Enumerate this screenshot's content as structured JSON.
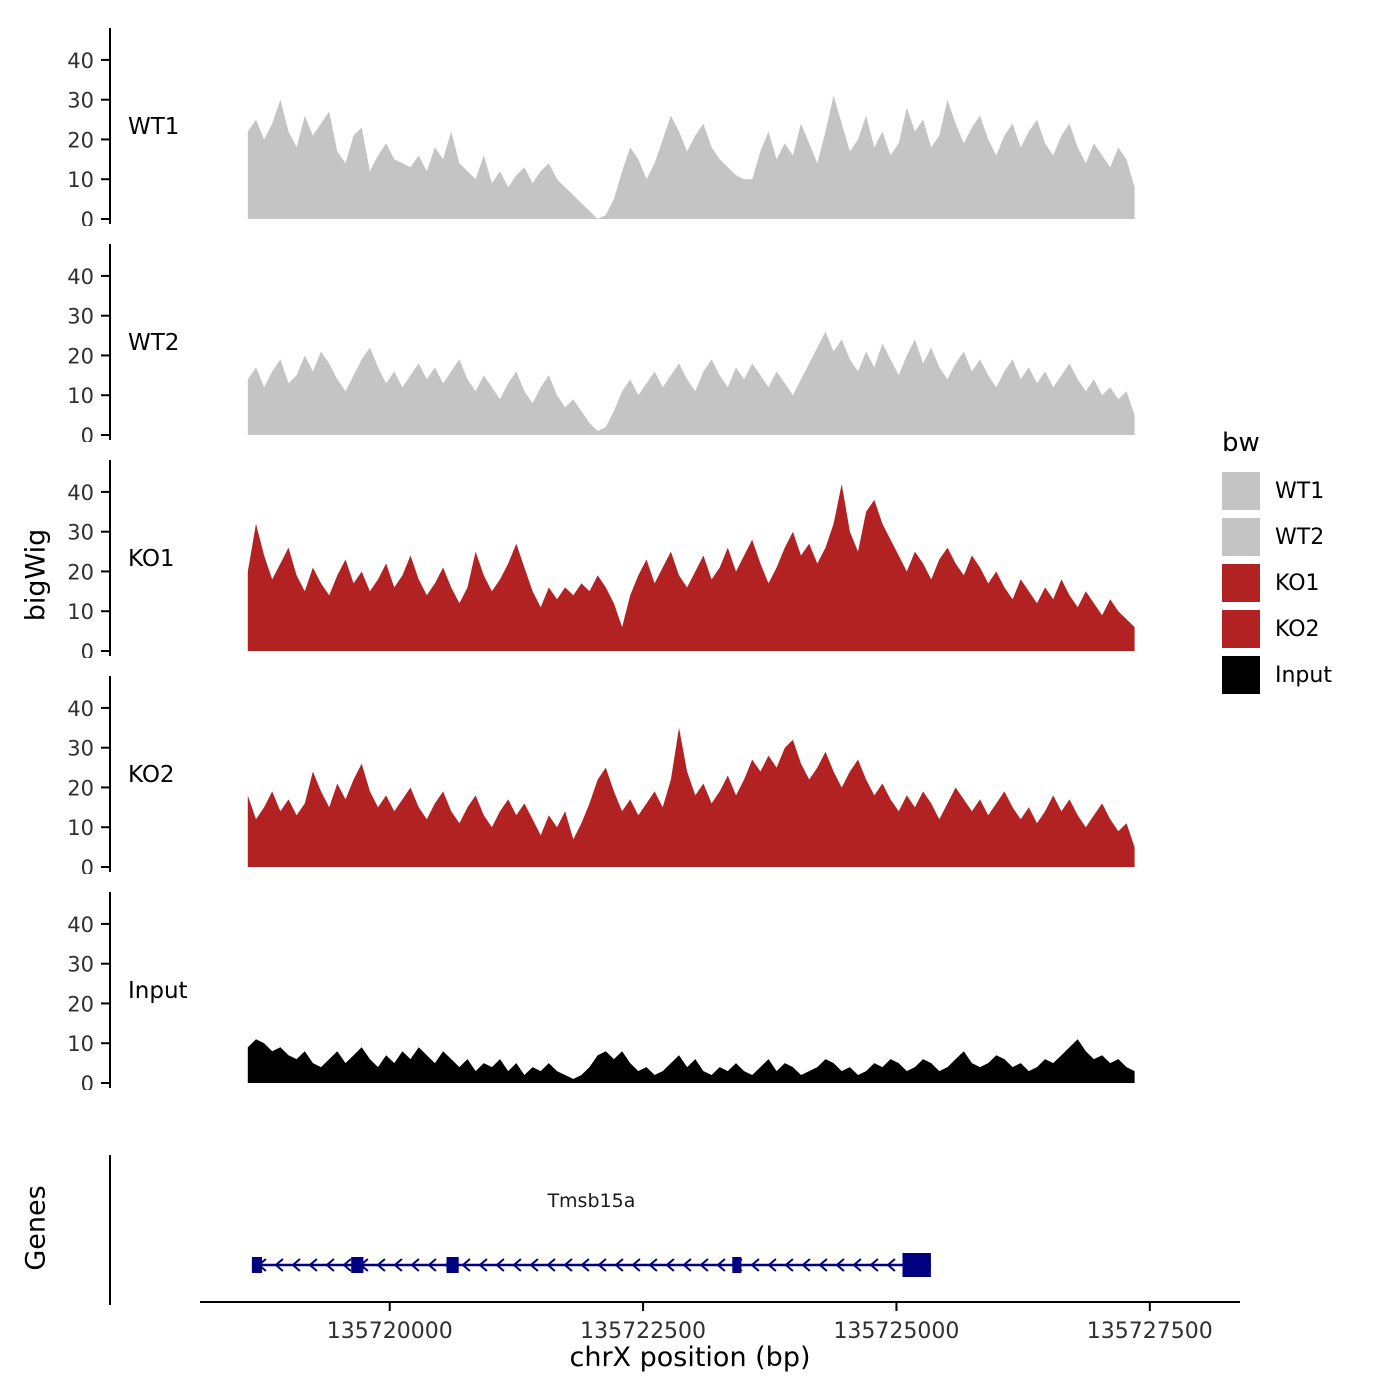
{
  "figure": {
    "y_axis_label": "bigWig",
    "genes_axis_label": "Genes",
    "x_axis_label": "chrX position (bp)",
    "x_domain": [
      135717240,
      135728390
    ],
    "x_ticks": [
      135720000,
      135722500,
      135725000,
      135727500
    ],
    "y_ticks": [
      0,
      10,
      20,
      30,
      40
    ],
    "y_max": 44,
    "background": "#ffffff"
  },
  "legend": {
    "title": "bw",
    "entries": [
      {
        "label": "WT1",
        "color": "#c4c4c4"
      },
      {
        "label": "WT2",
        "color": "#c4c4c4"
      },
      {
        "label": "KO1",
        "color": "#b22222"
      },
      {
        "label": "KO2",
        "color": "#b22222"
      },
      {
        "label": "Input",
        "color": "#000000"
      }
    ]
  },
  "chart_data": {
    "type": "area",
    "title": "",
    "xlabel": "chrX position (bp)",
    "ylabel": "bigWig",
    "x_start": 135718600,
    "x_end": 135727350,
    "ylim": [
      0,
      44
    ],
    "y_ticks": [
      0,
      10,
      20,
      30,
      40
    ],
    "series": [
      {
        "name": "WT1",
        "color": "#c4c4c4",
        "values": [
          22,
          25,
          20,
          24,
          30,
          22,
          18,
          26,
          21,
          24,
          27,
          17,
          14,
          21,
          23,
          12,
          16,
          19,
          15,
          14,
          13,
          16,
          12,
          18,
          15,
          22,
          14,
          12,
          10,
          16,
          9,
          12,
          8,
          11,
          13,
          9,
          12,
          14,
          10,
          8,
          6,
          4,
          2,
          0,
          1,
          5,
          12,
          18,
          15,
          10,
          14,
          20,
          26,
          22,
          17,
          21,
          24,
          18,
          15,
          13,
          11,
          10,
          10,
          17,
          22,
          15,
          19,
          16,
          24,
          19,
          14,
          22,
          31,
          24,
          17,
          20,
          26,
          18,
          22,
          16,
          19,
          28,
          22,
          25,
          18,
          21,
          30,
          24,
          19,
          23,
          26,
          20,
          16,
          21,
          24,
          18,
          22,
          25,
          19,
          16,
          21,
          24,
          18,
          14,
          19,
          16,
          13,
          18,
          15,
          8
        ]
      },
      {
        "name": "WT2",
        "color": "#c4c4c4",
        "values": [
          14,
          17,
          12,
          16,
          19,
          13,
          15,
          20,
          16,
          21,
          18,
          14,
          11,
          15,
          19,
          22,
          17,
          13,
          16,
          12,
          15,
          18,
          14,
          17,
          13,
          16,
          19,
          14,
          11,
          15,
          12,
          9,
          13,
          16,
          11,
          8,
          12,
          15,
          10,
          7,
          9,
          6,
          3,
          1,
          2,
          6,
          11,
          14,
          10,
          13,
          16,
          12,
          15,
          18,
          14,
          11,
          16,
          19,
          15,
          12,
          17,
          14,
          18,
          15,
          12,
          16,
          13,
          10,
          14,
          18,
          22,
          26,
          21,
          24,
          19,
          16,
          21,
          17,
          23,
          19,
          15,
          20,
          24,
          18,
          22,
          17,
          14,
          18,
          21,
          16,
          19,
          15,
          12,
          16,
          19,
          14,
          17,
          13,
          16,
          12,
          15,
          18,
          14,
          11,
          14,
          10,
          12,
          9,
          11,
          5
        ]
      },
      {
        "name": "KO1",
        "color": "#b22222",
        "values": [
          20,
          32,
          24,
          18,
          22,
          26,
          19,
          15,
          21,
          17,
          14,
          19,
          23,
          17,
          20,
          15,
          18,
          22,
          16,
          19,
          24,
          18,
          14,
          17,
          21,
          16,
          12,
          16,
          25,
          19,
          15,
          18,
          22,
          27,
          21,
          15,
          11,
          16,
          13,
          16,
          14,
          17,
          15,
          19,
          16,
          12,
          6,
          14,
          19,
          23,
          17,
          21,
          25,
          19,
          16,
          20,
          24,
          18,
          21,
          26,
          20,
          24,
          28,
          22,
          17,
          21,
          26,
          30,
          24,
          27,
          22,
          26,
          32,
          42,
          30,
          25,
          35,
          38,
          32,
          28,
          24,
          20,
          25,
          22,
          18,
          23,
          26,
          22,
          19,
          24,
          21,
          17,
          20,
          16,
          13,
          18,
          15,
          12,
          16,
          13,
          18,
          14,
          11,
          15,
          12,
          9,
          13,
          10,
          8,
          6
        ]
      },
      {
        "name": "KO2",
        "color": "#b22222",
        "values": [
          18,
          12,
          15,
          19,
          14,
          17,
          13,
          16,
          24,
          19,
          15,
          21,
          17,
          22,
          26,
          19,
          15,
          18,
          14,
          17,
          20,
          15,
          12,
          16,
          19,
          14,
          11,
          15,
          18,
          13,
          10,
          14,
          17,
          13,
          16,
          12,
          8,
          13,
          10,
          14,
          7,
          11,
          16,
          22,
          25,
          19,
          14,
          17,
          13,
          16,
          19,
          15,
          22,
          35,
          24,
          18,
          21,
          16,
          19,
          23,
          18,
          22,
          27,
          24,
          28,
          25,
          30,
          32,
          26,
          22,
          25,
          29,
          24,
          20,
          24,
          27,
          22,
          18,
          21,
          17,
          14,
          18,
          15,
          19,
          16,
          12,
          16,
          20,
          17,
          14,
          17,
          13,
          16,
          19,
          15,
          12,
          15,
          11,
          14,
          18,
          14,
          17,
          13,
          10,
          13,
          16,
          12,
          9,
          11,
          5
        ]
      },
      {
        "name": "Input",
        "color": "#000000",
        "values": [
          9,
          11,
          10,
          8,
          9,
          7,
          6,
          8,
          5,
          4,
          6,
          8,
          5,
          7,
          9,
          6,
          4,
          7,
          5,
          8,
          6,
          9,
          7,
          5,
          8,
          6,
          4,
          6,
          3,
          5,
          4,
          6,
          3,
          5,
          2,
          4,
          3,
          5,
          3,
          2,
          1,
          2,
          4,
          7,
          8,
          6,
          8,
          5,
          3,
          4,
          2,
          3,
          5,
          7,
          4,
          6,
          3,
          2,
          4,
          3,
          5,
          3,
          2,
          4,
          6,
          3,
          5,
          4,
          2,
          3,
          4,
          6,
          5,
          3,
          4,
          2,
          3,
          5,
          4,
          6,
          5,
          3,
          4,
          6,
          5,
          3,
          4,
          6,
          8,
          5,
          4,
          5,
          7,
          6,
          4,
          5,
          3,
          4,
          6,
          5,
          7,
          9,
          11,
          8,
          6,
          7,
          5,
          6,
          4,
          3
        ]
      }
    ]
  },
  "gene_track": {
    "label": "Genes",
    "gene": {
      "name": "Tmsb15a",
      "strand": "-",
      "color": "#000080",
      "start": 135718640,
      "end": 135725340,
      "exons": [
        {
          "start": 135718640,
          "end": 135718740,
          "tall": false
        },
        {
          "start": 135719620,
          "end": 135719740,
          "tall": false
        },
        {
          "start": 135720560,
          "end": 135720680,
          "tall": false
        },
        {
          "start": 135723380,
          "end": 135723470,
          "tall": false
        },
        {
          "start": 135725060,
          "end": 135725340,
          "tall": true
        }
      ]
    }
  }
}
